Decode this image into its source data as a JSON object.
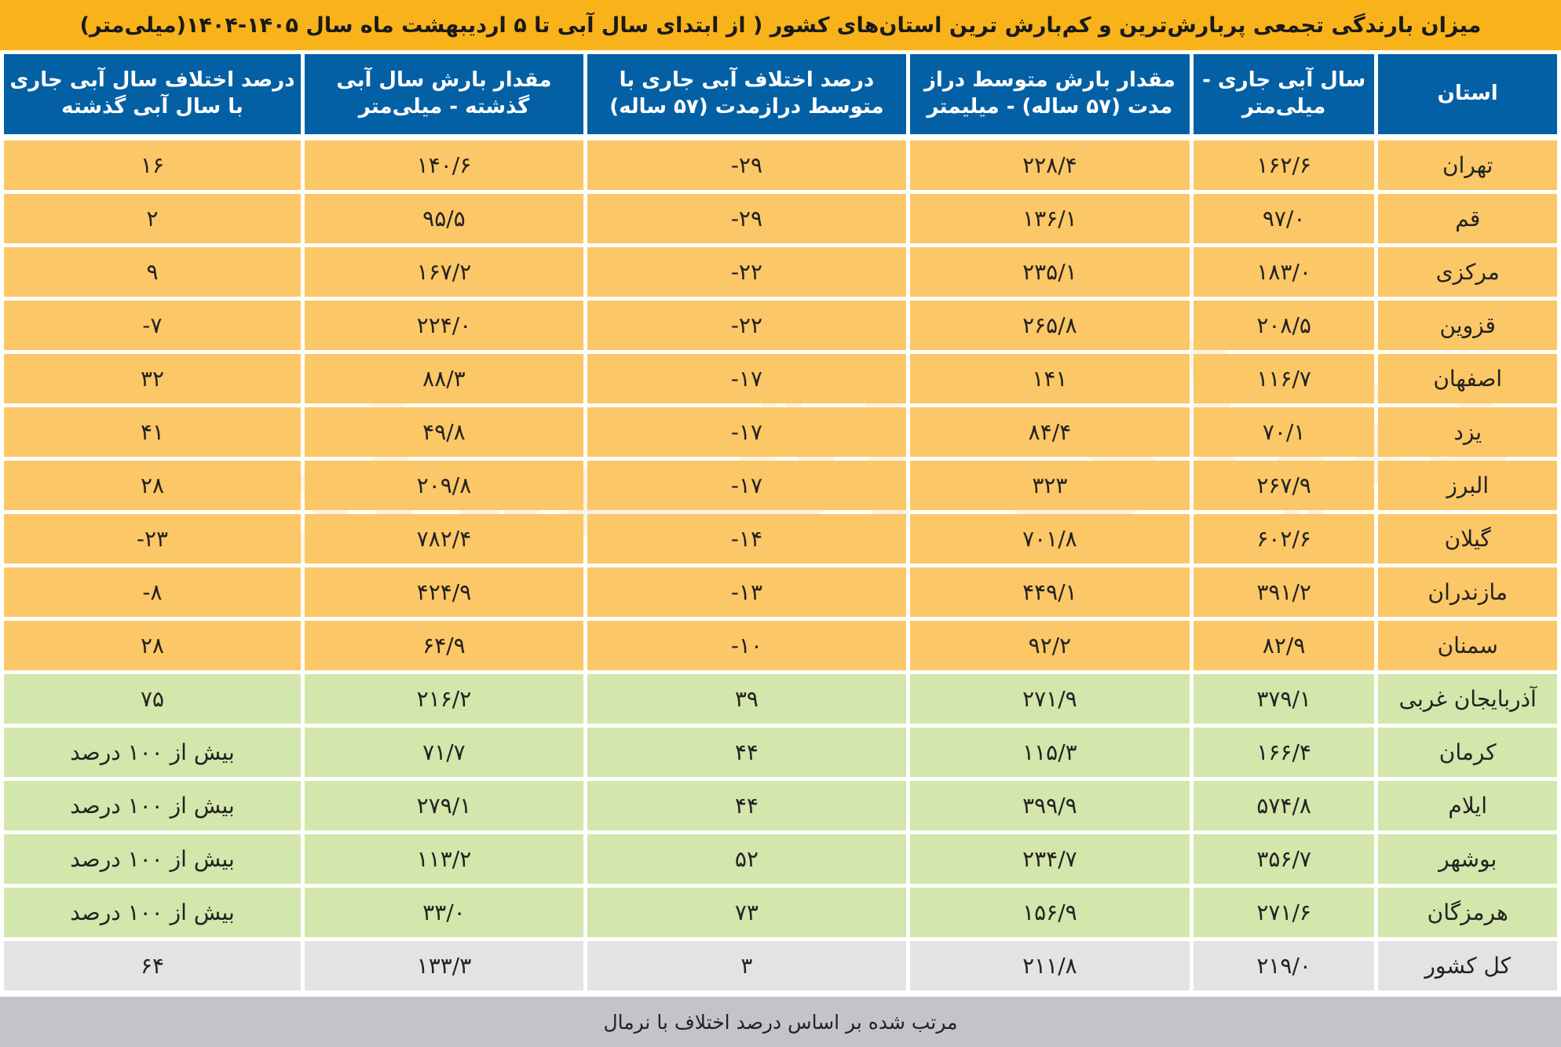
{
  "title": "میزان بارندگی تجمعی پربارش‌ترین و کم‌بارش ترین استان‌های کشور ( از ابتدای سال آبی تا ۵ اردیبهشت ماه سال ۱۴۰۵-۱۴۰۴(میلی‌متر)",
  "colors": {
    "header": "#0460a5",
    "title": "#f9b31a",
    "low_rows": "#fcc766",
    "high_rows": "#d3e6ab",
    "total_row": "#e3e3e5",
    "footer": "#c3c4c7"
  },
  "table": {
    "headers": [
      "استان",
      "سال آبی جاری - میلی‌متر",
      "مقدار بارش متوسط دراز مدت (۵۷ ساله) - میلیمتر",
      "درصد اختلاف آبی جاری با متوسط درازمدت (۵۷ ساله)",
      "مقدار بارش سال آبی گذشته - میلی‌متر",
      "درصد اختلاف سال آبی جاری با سال آبی گذشته"
    ],
    "low_rows": [
      [
        "تهران",
        "۱۶۲/۶",
        "۲۲۸/۴",
        "-۲۹",
        "۱۴۰/۶",
        "۱۶"
      ],
      [
        "قم",
        "۹۷/۰",
        "۱۳۶/۱",
        "-۲۹",
        "۹۵/۵",
        "۲"
      ],
      [
        "مرکزی",
        "۱۸۳/۰",
        "۲۳۵/۱",
        "-۲۲",
        "۱۶۷/۲",
        "۹"
      ],
      [
        "قزوین",
        "۲۰۸/۵",
        "۲۶۵/۸",
        "-۲۲",
        "۲۲۴/۰",
        "-۷"
      ],
      [
        "اصفهان",
        "۱۱۶/۷",
        "۱۴۱",
        "-۱۷",
        "۸۸/۳",
        "۳۲"
      ],
      [
        "یزد",
        "۷۰/۱",
        "۸۴/۴",
        "-۱۷",
        "۴۹/۸",
        "۴۱"
      ],
      [
        "البرز",
        "۲۶۷/۹",
        "۳۲۳",
        "-۱۷",
        "۲۰۹/۸",
        "۲۸"
      ],
      [
        "گیلان",
        "۶۰۲/۶",
        "۷۰۱/۸",
        "-۱۴",
        "۷۸۲/۴",
        "-۲۳"
      ],
      [
        "مازندران",
        "۳۹۱/۲",
        "۴۴۹/۱",
        "-۱۳",
        "۴۲۴/۹",
        "-۸"
      ],
      [
        "سمنان",
        "۸۲/۹",
        "۹۲/۲",
        "-۱۰",
        "۶۴/۹",
        "۲۸"
      ]
    ],
    "high_rows": [
      [
        "آذربایجان غربی",
        "۳۷۹/۱",
        "۲۷۱/۹",
        "۳۹",
        "۲۱۶/۲",
        "۷۵"
      ],
      [
        "کرمان",
        "۱۶۶/۴",
        "۱۱۵/۳",
        "۴۴",
        "۷۱/۷",
        "بیش از ۱۰۰ درصد"
      ],
      [
        "ایلام",
        "۵۷۴/۸",
        "۳۹۹/۹",
        "۴۴",
        "۲۷۹/۱",
        "بیش از ۱۰۰ درصد"
      ],
      [
        "بوشهر",
        "۳۵۶/۷",
        "۲۳۴/۷",
        "۵۲",
        "۱۱۳/۲",
        "بیش از ۱۰۰ درصد"
      ],
      [
        "هرمزگان",
        "۲۷۱/۶",
        "۱۵۶/۹",
        "۷۳",
        "۳۳/۰",
        "بیش از ۱۰۰ درصد"
      ]
    ],
    "total_row": [
      "کل کشور",
      "۲۱۹/۰",
      "۲۱۱/۸",
      "۳",
      "۱۳۳/۳",
      "۶۴"
    ]
  },
  "footer": "مرتب شده بر اساس درصد اختلاف با نرمال",
  "watermark": "دنیای اقتصاد"
}
